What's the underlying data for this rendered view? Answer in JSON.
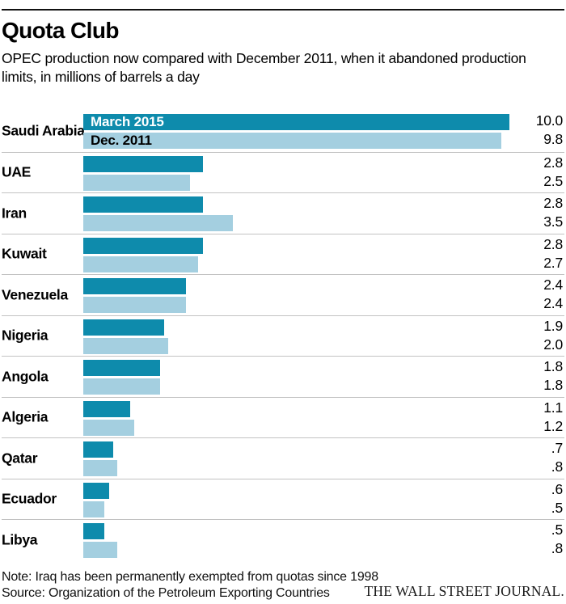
{
  "header": {
    "title": "Quota Club",
    "subtitle": "OPEC production now compared with December 2011, when it abandoned production limits, in millions of barrels a day"
  },
  "chart_data": {
    "type": "bar",
    "orientation": "horizontal",
    "title": "Quota Club",
    "subtitle": "OPEC production now compared with December 2011, when it abandoned production limits, in millions of barrels a day",
    "unit": "millions of barrels a day",
    "xlim": [
      0,
      10.6
    ],
    "grid": false,
    "legend_position": "inside-first-bar-pair",
    "categories": [
      "Saudi Arabia",
      "UAE",
      "Iran",
      "Kuwait",
      "Venezuela",
      "Nigeria",
      "Angola",
      "Algeria",
      "Qatar",
      "Ecuador",
      "Libya"
    ],
    "series": [
      {
        "name": "March 2015",
        "color": "#0e8bac",
        "label_color_on_bar": "#ffffff",
        "values": [
          10.0,
          2.8,
          2.8,
          2.8,
          2.4,
          1.9,
          1.8,
          1.1,
          0.7,
          0.6,
          0.5
        ],
        "labels": [
          "10.0",
          "2.8",
          "2.8",
          "2.8",
          "2.4",
          "1.9",
          "1.8",
          "1.1",
          ".7",
          ".6",
          ".5"
        ]
      },
      {
        "name": "Dec. 2011",
        "color": "#a4cfe0",
        "label_color_on_bar": "#000000",
        "values": [
          9.8,
          2.5,
          3.5,
          2.7,
          2.4,
          2.0,
          1.8,
          1.2,
          0.8,
          0.5,
          0.8
        ],
        "labels": [
          "9.8",
          "2.5",
          "3.5",
          "2.7",
          "2.4",
          "2.0",
          "1.8",
          "1.2",
          ".8",
          ".5",
          ".8"
        ]
      }
    ]
  },
  "footer": {
    "note": "Note: Iraq has been permanently exempted from quotas since 1998",
    "source": "Source: Organization of the Petroleum Exporting Countries",
    "credit": "THE WALL STREET JOURNAL."
  }
}
